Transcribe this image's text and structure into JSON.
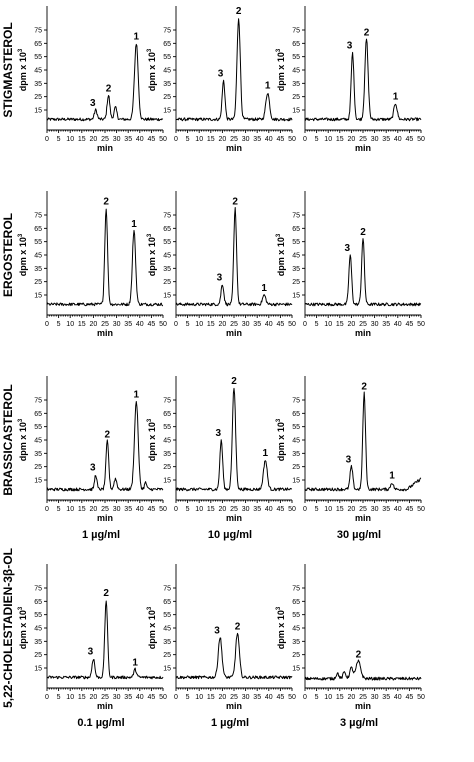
{
  "chart_data": {
    "type": "line",
    "x_ticks": [
      0,
      5,
      10,
      15,
      20,
      25,
      30,
      35,
      40,
      45,
      50
    ],
    "y_ticks": [
      15,
      25,
      35,
      45,
      55,
      65,
      75
    ],
    "xlim": [
      0,
      50
    ],
    "ylim": [
      0,
      90
    ],
    "xlabel": "min",
    "ylabel": "dpm x 10",
    "ylabel_sup": "3",
    "grid": false,
    "rows": [
      {
        "label": "STIGMASTEROL",
        "concentrations": [],
        "panels": [
          {
            "baseline": 8,
            "peaks": [
              {
                "label": "3",
                "x": 21,
                "height": 15,
                "width": 0.6
              },
              {
                "label": "2",
                "x": 26.5,
                "height": 26,
                "width": 0.6
              },
              {
                "label": "",
                "x": 29.5,
                "height": 17,
                "width": 0.6
              },
              {
                "label": "1",
                "x": 38.5,
                "height": 65,
                "width": 0.8
              }
            ]
          },
          {
            "baseline": 8,
            "peaks": [
              {
                "label": "3",
                "x": 20.5,
                "height": 37,
                "width": 0.6
              },
              {
                "label": "2",
                "x": 27,
                "height": 84,
                "width": 0.7
              },
              {
                "label": "1",
                "x": 39.5,
                "height": 28,
                "width": 0.8
              }
            ]
          },
          {
            "baseline": 8,
            "peaks": [
              {
                "label": "3",
                "x": 20.5,
                "height": 58,
                "width": 0.6
              },
              {
                "label": "2",
                "x": 26.5,
                "height": 68,
                "width": 0.7
              },
              {
                "label": "1",
                "x": 39,
                "height": 20,
                "width": 0.7
              }
            ]
          }
        ]
      },
      {
        "label": "ERGOSTEROL",
        "concentrations": [],
        "panels": [
          {
            "baseline": 8,
            "peaks": [
              {
                "label": "2",
                "x": 25.5,
                "height": 80,
                "width": 0.6
              },
              {
                "label": "1",
                "x": 37.5,
                "height": 63,
                "width": 0.7
              }
            ]
          },
          {
            "baseline": 8,
            "peaks": [
              {
                "label": "3",
                "x": 20,
                "height": 23,
                "width": 0.6
              },
              {
                "label": "2",
                "x": 25.5,
                "height": 80,
                "width": 0.6
              },
              {
                "label": "1",
                "x": 38,
                "height": 15,
                "width": 0.7
              }
            ]
          },
          {
            "baseline": 8,
            "peaks": [
              {
                "label": "3",
                "x": 19.5,
                "height": 45,
                "width": 0.6
              },
              {
                "label": "2",
                "x": 25,
                "height": 57,
                "width": 0.6
              }
            ]
          }
        ]
      },
      {
        "label": "BRASSICASTEROL",
        "concentrations": [
          "1 µg/ml",
          "10 µg/ml",
          "30 µg/ml"
        ],
        "panels": [
          {
            "baseline": 8,
            "peaks": [
              {
                "label": "3",
                "x": 21,
                "height": 19,
                "width": 0.5
              },
              {
                "label": "2",
                "x": 26,
                "height": 44,
                "width": 0.6
              },
              {
                "label": "",
                "x": 29.5,
                "height": 16,
                "width": 0.6
              },
              {
                "label": "1",
                "x": 38.5,
                "height": 74,
                "width": 0.8
              },
              {
                "label": "",
                "x": 42.5,
                "height": 13,
                "width": 0.5
              }
            ]
          },
          {
            "baseline": 8,
            "peaks": [
              {
                "label": "3",
                "x": 19.5,
                "height": 45,
                "width": 0.6
              },
              {
                "label": "2",
                "x": 25,
                "height": 84,
                "width": 0.7
              },
              {
                "label": "1",
                "x": 38.5,
                "height": 30,
                "width": 0.8
              }
            ]
          },
          {
            "baseline": 8,
            "peaks": [
              {
                "label": "3",
                "x": 20,
                "height": 25,
                "width": 0.6
              },
              {
                "label": "2",
                "x": 25.5,
                "height": 80,
                "width": 0.6
              },
              {
                "label": "1",
                "x": 37.5,
                "height": 13,
                "width": 0.6
              }
            ],
            "tail_rise": 16
          }
        ]
      },
      {
        "label": "5,22-CHOLESTADIEN-3β-OL",
        "concentrations": [
          "0.1 µg/ml",
          "1 µg/ml",
          "3 µg/ml"
        ],
        "panels": [
          {
            "baseline": 8,
            "peaks": [
              {
                "label": "3",
                "x": 20,
                "height": 22,
                "width": 0.6
              },
              {
                "label": "2",
                "x": 25.5,
                "height": 66,
                "width": 0.6
              },
              {
                "label": "1",
                "x": 38,
                "height": 14,
                "width": 0.6
              }
            ]
          },
          {
            "baseline": 8,
            "peaks": [
              {
                "label": "3",
                "x": 19,
                "height": 38,
                "width": 0.8
              },
              {
                "label": "2",
                "x": 26.5,
                "height": 41,
                "width": 0.8
              }
            ]
          },
          {
            "baseline": 7,
            "peaks": [
              {
                "label": "",
                "x": 14,
                "height": 11,
                "width": 0.6
              },
              {
                "label": "",
                "x": 17,
                "height": 12,
                "width": 0.6
              },
              {
                "label": "",
                "x": 20,
                "height": 15,
                "width": 0.7
              },
              {
                "label": "2",
                "x": 23,
                "height": 20,
                "width": 1.0
              }
            ]
          }
        ]
      }
    ]
  }
}
